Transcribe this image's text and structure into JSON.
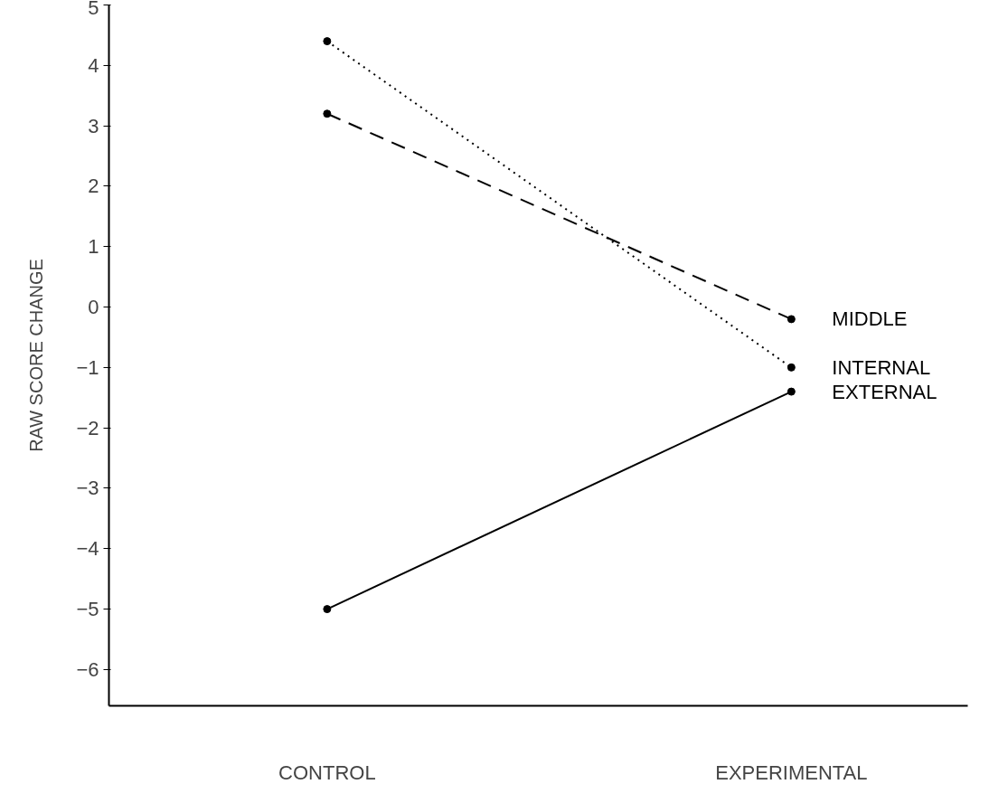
{
  "chart_data": {
    "type": "line",
    "ylabel": "RAW SCORE CHANGE",
    "categories": [
      "CONTROL",
      "EXPERIMENTAL"
    ],
    "ylim": [
      -6.6,
      5
    ],
    "yticks": [
      -6,
      -5,
      -4,
      -3,
      -2,
      -1,
      0,
      1,
      2,
      3,
      4,
      5
    ],
    "grid": false,
    "legend": false,
    "marker": "circle",
    "series": [
      {
        "name": "MIDDLE",
        "color": "#000000",
        "values": [
          3.2,
          -0.2
        ],
        "line_style": "dashed"
      },
      {
        "name": "INTERNAL",
        "color": "#000000",
        "values": [
          4.4,
          -1.0
        ],
        "line_style": "dotted"
      },
      {
        "name": "EXTERNAL",
        "color": "#000000",
        "values": [
          -5.0,
          -1.4
        ],
        "line_style": "solid"
      }
    ]
  }
}
